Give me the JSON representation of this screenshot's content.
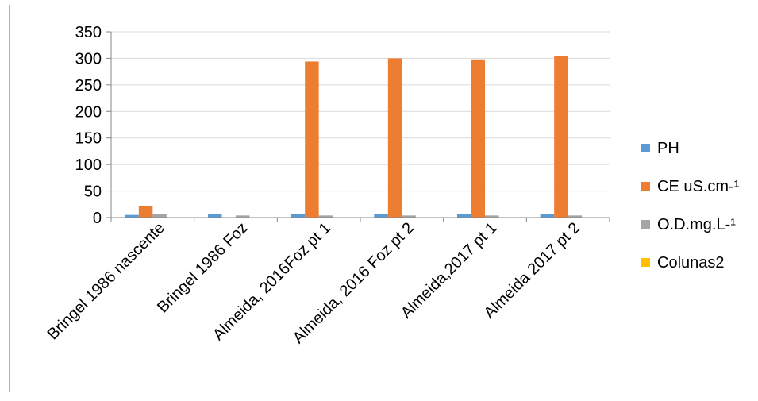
{
  "chart_data": {
    "type": "bar",
    "title": "",
    "xlabel": "",
    "ylabel": "",
    "ylim": [
      0,
      350
    ],
    "yticks": [
      0,
      50,
      100,
      150,
      200,
      250,
      300,
      350
    ],
    "grid": true,
    "legend_position": "right",
    "categories": [
      "Bringel 1986 nascente",
      "Bringel 1986 Foz",
      "Almeida, 2016Foz pt 1",
      "Almeida, 2016 Foz pt 2",
      "Almeida,2017 pt 1",
      "Almeida 2017 pt 2"
    ],
    "series": [
      {
        "name": "PH",
        "color": "#5B9BD5",
        "values": [
          5,
          6.5,
          7,
          7,
          7,
          7
        ]
      },
      {
        "name": "CE uS.cm-¹",
        "color": "#ED7D31",
        "values": [
          21,
          0,
          294,
          300,
          298,
          304
        ]
      },
      {
        "name": "O.D.mg.L-¹",
        "color": "#A5A5A5",
        "values": [
          7,
          4,
          4,
          4,
          4,
          4
        ]
      },
      {
        "name": "Colunas2",
        "color": "#FFC000",
        "values": [
          0,
          0,
          0,
          0,
          0,
          0
        ]
      }
    ]
  }
}
